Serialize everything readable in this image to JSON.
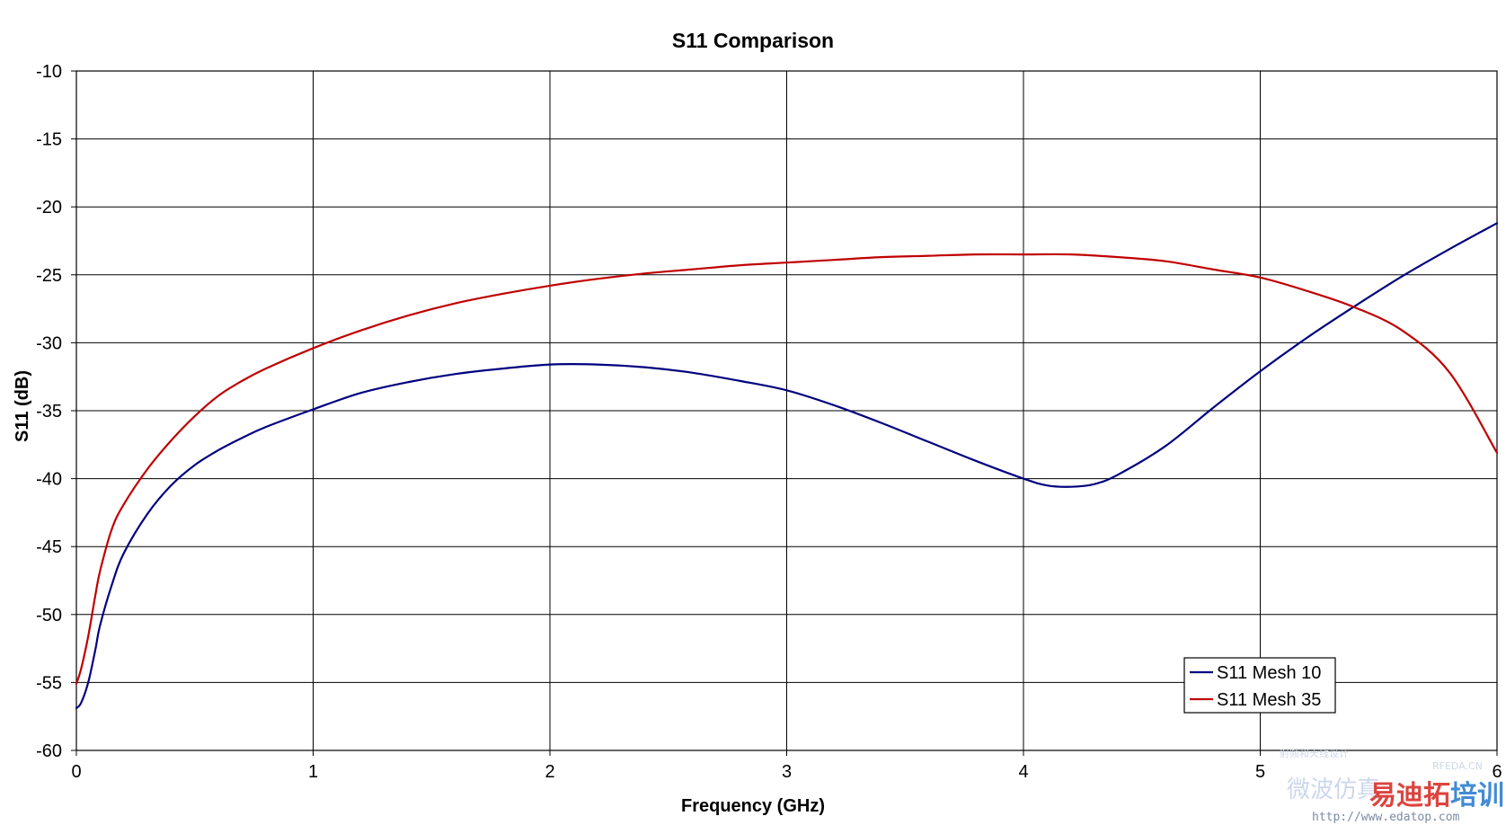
{
  "chart_data": {
    "type": "line",
    "title": "S11 Comparison",
    "xlabel": "Frequency (GHz)",
    "ylabel": "S11 (dB)",
    "xlim": [
      0,
      6
    ],
    "ylim": [
      -60,
      -10
    ],
    "xticks": [
      0,
      1,
      2,
      3,
      4,
      5,
      6
    ],
    "yticks": [
      -10,
      -15,
      -20,
      -25,
      -30,
      -35,
      -40,
      -45,
      -50,
      -55,
      -60
    ],
    "grid": true,
    "legend_position": "bottom-right",
    "series": [
      {
        "name": "S11 Mesh 10",
        "color": "#00007f",
        "x": [
          0,
          0.02,
          0.05,
          0.08,
          0.1,
          0.15,
          0.2,
          0.3,
          0.4,
          0.5,
          0.6,
          0.7,
          0.8,
          1.0,
          1.2,
          1.4,
          1.6,
          1.8,
          2.0,
          2.2,
          2.4,
          2.6,
          2.8,
          3.0,
          3.2,
          3.4,
          3.6,
          3.8,
          4.0,
          4.1,
          4.2,
          4.3,
          4.4,
          4.6,
          4.8,
          5.0,
          5.2,
          5.4,
          5.6,
          5.8,
          6.0
        ],
        "y": [
          -56.9,
          -56.5,
          -55.0,
          -52.6,
          -50.8,
          -47.8,
          -45.5,
          -42.6,
          -40.5,
          -39.0,
          -37.9,
          -37.0,
          -36.2,
          -34.9,
          -33.7,
          -32.9,
          -32.3,
          -31.9,
          -31.6,
          -31.6,
          -31.8,
          -32.2,
          -32.8,
          -33.5,
          -34.6,
          -35.9,
          -37.3,
          -38.7,
          -40.0,
          -40.5,
          -40.6,
          -40.4,
          -39.7,
          -37.6,
          -34.8,
          -32.1,
          -29.6,
          -27.3,
          -25.1,
          -23.1,
          -21.2
        ]
      },
      {
        "name": "S11 Mesh 35",
        "color": "#c00000",
        "x": [
          0,
          0.02,
          0.05,
          0.08,
          0.1,
          0.15,
          0.2,
          0.3,
          0.4,
          0.5,
          0.6,
          0.7,
          0.8,
          1.0,
          1.2,
          1.4,
          1.6,
          1.8,
          2.0,
          2.2,
          2.4,
          2.6,
          2.8,
          3.0,
          3.2,
          3.4,
          3.6,
          3.8,
          4.0,
          4.2,
          4.4,
          4.6,
          4.8,
          5.0,
          5.2,
          5.4,
          5.6,
          5.8,
          6.0
        ],
        "y": [
          -55.1,
          -54.0,
          -51.6,
          -48.6,
          -46.8,
          -43.7,
          -41.9,
          -39.3,
          -37.2,
          -35.4,
          -33.9,
          -32.8,
          -31.9,
          -30.4,
          -29.1,
          -28.0,
          -27.1,
          -26.4,
          -25.8,
          -25.3,
          -24.9,
          -24.6,
          -24.3,
          -24.1,
          -23.9,
          -23.7,
          -23.6,
          -23.5,
          -23.5,
          -23.5,
          -23.7,
          -24.0,
          -24.6,
          -25.2,
          -26.2,
          -27.4,
          -29.1,
          -32.2,
          -38.1
        ]
      }
    ]
  },
  "watermark": {
    "small_cn": "射频和天线设计",
    "site_en": "RFEDA.CN",
    "cn_light": "微波仿真",
    "cn_red": "易迪拓",
    "cn_blue": "培训",
    "url": "http://www.edatop.com"
  }
}
